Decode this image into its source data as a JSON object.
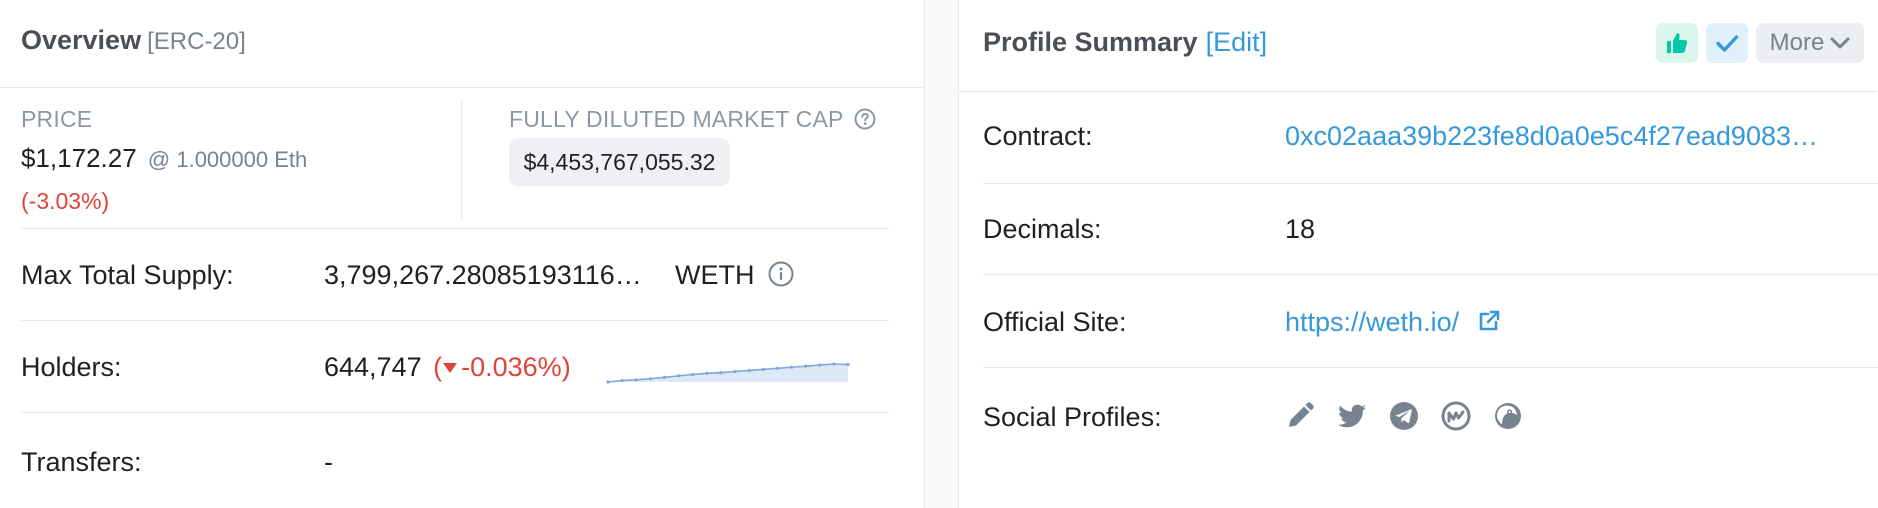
{
  "overview": {
    "title": "Overview",
    "subtitle": "[ERC-20]",
    "price": {
      "label": "PRICE",
      "value": "$1,172.27",
      "eth_rate": "@ 1.000000 Eth",
      "change": "(-3.03%)"
    },
    "market_cap": {
      "label": "FULLY DILUTED MARKET CAP",
      "value": "$4,453,767,055.32"
    },
    "max_supply": {
      "label": "Max Total Supply:",
      "value": "3,799,267.28085193116…",
      "symbol": "WETH"
    },
    "holders": {
      "label": "Holders:",
      "value": "644,747",
      "change": "-0.036%",
      "sparkline": [
        0.0,
        0.08,
        0.12,
        0.18,
        0.26,
        0.34,
        0.42,
        0.48,
        0.52,
        0.58,
        0.64,
        0.7,
        0.76,
        0.82,
        0.88,
        0.94,
        1.0,
        0.97
      ]
    },
    "transfers": {
      "label": "Transfers:",
      "value": "-"
    }
  },
  "profile": {
    "title": "Profile Summary",
    "edit_label": "[Edit]",
    "more_label": "More",
    "contract": {
      "label": "Contract:",
      "value": "0xc02aaa39b223fe8d0a0e5c4f27ead9083…"
    },
    "decimals": {
      "label": "Decimals:",
      "value": "18"
    },
    "official_site": {
      "label": "Official Site:",
      "value": "https://weth.io/"
    },
    "social": {
      "label": "Social Profiles:",
      "icons": [
        "pencil-icon",
        "twitter-icon",
        "telegram-icon",
        "coinmarketcap-icon",
        "coingecko-icon"
      ]
    }
  },
  "colors": {
    "link": "#3498db",
    "negative": "#de4437",
    "positive": "#00c9a7",
    "muted": "#77838f"
  }
}
